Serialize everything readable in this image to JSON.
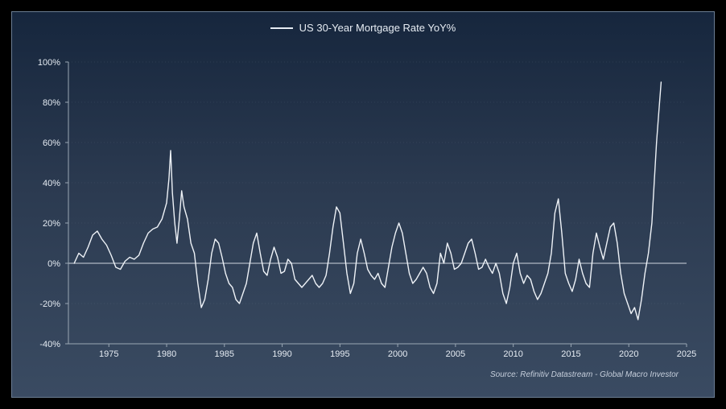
{
  "chart": {
    "type": "line",
    "legend_label": "US 30-Year Mortgage Rate YoY%",
    "source_label": "Source: Refinitiv Datastream - Global Macro Investor",
    "background_gradient": [
      "#16263d",
      "#2b3a50",
      "#3a4b62"
    ],
    "border_color": "#6b7d93",
    "text_color": "#e6ecf3",
    "axis_color": "#9aa7b4",
    "zero_line_color": "#cfd6df",
    "grid_color": "#6e7d8e",
    "series_color": "#eef2f7",
    "line_width": 1.4,
    "label_fontsize": 11,
    "legend_fontsize": 13,
    "xlim": [
      1971.5,
      2025
    ],
    "ylim": [
      -40,
      100
    ],
    "ytick_step": 20,
    "yticks": [
      -40,
      -20,
      0,
      20,
      40,
      60,
      80,
      100
    ],
    "ytick_labels": [
      "-40%",
      "-20%",
      "0%",
      "20%",
      "40%",
      "60%",
      "80%",
      "100%"
    ],
    "xticks": [
      1975,
      1980,
      1985,
      1990,
      1995,
      2000,
      2005,
      2010,
      2015,
      2020,
      2025
    ],
    "xtick_labels": [
      "1975",
      "1980",
      "1985",
      "1990",
      "1995",
      "2000",
      "2005",
      "2010",
      "2015",
      "2020",
      "2025"
    ],
    "series": [
      {
        "x": 1972.0,
        "y": 0
      },
      {
        "x": 1972.4,
        "y": 5
      },
      {
        "x": 1972.8,
        "y": 3
      },
      {
        "x": 1973.2,
        "y": 8
      },
      {
        "x": 1973.6,
        "y": 14
      },
      {
        "x": 1974.0,
        "y": 16
      },
      {
        "x": 1974.4,
        "y": 12
      },
      {
        "x": 1974.8,
        "y": 9
      },
      {
        "x": 1975.2,
        "y": 4
      },
      {
        "x": 1975.6,
        "y": -2
      },
      {
        "x": 1976.0,
        "y": -3
      },
      {
        "x": 1976.4,
        "y": 1
      },
      {
        "x": 1976.8,
        "y": 3
      },
      {
        "x": 1977.2,
        "y": 2
      },
      {
        "x": 1977.6,
        "y": 4
      },
      {
        "x": 1978.0,
        "y": 10
      },
      {
        "x": 1978.4,
        "y": 15
      },
      {
        "x": 1978.8,
        "y": 17
      },
      {
        "x": 1979.2,
        "y": 18
      },
      {
        "x": 1979.6,
        "y": 22
      },
      {
        "x": 1980.0,
        "y": 30
      },
      {
        "x": 1980.2,
        "y": 42
      },
      {
        "x": 1980.35,
        "y": 56
      },
      {
        "x": 1980.5,
        "y": 35
      },
      {
        "x": 1980.7,
        "y": 20
      },
      {
        "x": 1980.9,
        "y": 10
      },
      {
        "x": 1981.1,
        "y": 22
      },
      {
        "x": 1981.3,
        "y": 36
      },
      {
        "x": 1981.5,
        "y": 28
      },
      {
        "x": 1981.8,
        "y": 22
      },
      {
        "x": 1982.1,
        "y": 10
      },
      {
        "x": 1982.4,
        "y": 5
      },
      {
        "x": 1982.7,
        "y": -10
      },
      {
        "x": 1983.0,
        "y": -22
      },
      {
        "x": 1983.3,
        "y": -18
      },
      {
        "x": 1983.6,
        "y": -8
      },
      {
        "x": 1983.9,
        "y": 5
      },
      {
        "x": 1984.2,
        "y": 12
      },
      {
        "x": 1984.5,
        "y": 10
      },
      {
        "x": 1984.8,
        "y": 3
      },
      {
        "x": 1985.1,
        "y": -5
      },
      {
        "x": 1985.4,
        "y": -10
      },
      {
        "x": 1985.7,
        "y": -12
      },
      {
        "x": 1986.0,
        "y": -18
      },
      {
        "x": 1986.3,
        "y": -20
      },
      {
        "x": 1986.6,
        "y": -15
      },
      {
        "x": 1986.9,
        "y": -10
      },
      {
        "x": 1987.2,
        "y": 0
      },
      {
        "x": 1987.5,
        "y": 10
      },
      {
        "x": 1987.8,
        "y": 15
      },
      {
        "x": 1988.1,
        "y": 5
      },
      {
        "x": 1988.4,
        "y": -4
      },
      {
        "x": 1988.7,
        "y": -6
      },
      {
        "x": 1989.0,
        "y": 2
      },
      {
        "x": 1989.3,
        "y": 8
      },
      {
        "x": 1989.6,
        "y": 3
      },
      {
        "x": 1989.9,
        "y": -5
      },
      {
        "x": 1990.2,
        "y": -4
      },
      {
        "x": 1990.5,
        "y": 2
      },
      {
        "x": 1990.8,
        "y": 0
      },
      {
        "x": 1991.1,
        "y": -8
      },
      {
        "x": 1991.4,
        "y": -10
      },
      {
        "x": 1991.7,
        "y": -12
      },
      {
        "x": 1992.0,
        "y": -10
      },
      {
        "x": 1992.3,
        "y": -8
      },
      {
        "x": 1992.6,
        "y": -6
      },
      {
        "x": 1992.9,
        "y": -10
      },
      {
        "x": 1993.2,
        "y": -12
      },
      {
        "x": 1993.5,
        "y": -10
      },
      {
        "x": 1993.8,
        "y": -6
      },
      {
        "x": 1994.1,
        "y": 5
      },
      {
        "x": 1994.4,
        "y": 18
      },
      {
        "x": 1994.7,
        "y": 28
      },
      {
        "x": 1995.0,
        "y": 25
      },
      {
        "x": 1995.3,
        "y": 10
      },
      {
        "x": 1995.6,
        "y": -5
      },
      {
        "x": 1995.9,
        "y": -15
      },
      {
        "x": 1996.2,
        "y": -10
      },
      {
        "x": 1996.5,
        "y": 5
      },
      {
        "x": 1996.8,
        "y": 12
      },
      {
        "x": 1997.1,
        "y": 5
      },
      {
        "x": 1997.4,
        "y": -3
      },
      {
        "x": 1997.7,
        "y": -6
      },
      {
        "x": 1998.0,
        "y": -8
      },
      {
        "x": 1998.3,
        "y": -5
      },
      {
        "x": 1998.6,
        "y": -10
      },
      {
        "x": 1998.9,
        "y": -12
      },
      {
        "x": 1999.2,
        "y": -2
      },
      {
        "x": 1999.5,
        "y": 8
      },
      {
        "x": 1999.8,
        "y": 15
      },
      {
        "x": 2000.1,
        "y": 20
      },
      {
        "x": 2000.4,
        "y": 15
      },
      {
        "x": 2000.7,
        "y": 5
      },
      {
        "x": 2001.0,
        "y": -5
      },
      {
        "x": 2001.3,
        "y": -10
      },
      {
        "x": 2001.6,
        "y": -8
      },
      {
        "x": 2001.9,
        "y": -5
      },
      {
        "x": 2002.2,
        "y": -2
      },
      {
        "x": 2002.5,
        "y": -5
      },
      {
        "x": 2002.8,
        "y": -12
      },
      {
        "x": 2003.1,
        "y": -15
      },
      {
        "x": 2003.4,
        "y": -10
      },
      {
        "x": 2003.7,
        "y": 5
      },
      {
        "x": 2004.0,
        "y": 0
      },
      {
        "x": 2004.3,
        "y": 10
      },
      {
        "x": 2004.6,
        "y": 5
      },
      {
        "x": 2004.9,
        "y": -3
      },
      {
        "x": 2005.2,
        "y": -2
      },
      {
        "x": 2005.5,
        "y": 0
      },
      {
        "x": 2005.8,
        "y": 5
      },
      {
        "x": 2006.1,
        "y": 10
      },
      {
        "x": 2006.4,
        "y": 12
      },
      {
        "x": 2006.7,
        "y": 5
      },
      {
        "x": 2007.0,
        "y": -3
      },
      {
        "x": 2007.3,
        "y": -2
      },
      {
        "x": 2007.6,
        "y": 2
      },
      {
        "x": 2007.9,
        "y": -2
      },
      {
        "x": 2008.2,
        "y": -5
      },
      {
        "x": 2008.5,
        "y": 0
      },
      {
        "x": 2008.8,
        "y": -5
      },
      {
        "x": 2009.1,
        "y": -15
      },
      {
        "x": 2009.4,
        "y": -20
      },
      {
        "x": 2009.7,
        "y": -12
      },
      {
        "x": 2010.0,
        "y": 0
      },
      {
        "x": 2010.3,
        "y": 5
      },
      {
        "x": 2010.6,
        "y": -5
      },
      {
        "x": 2010.9,
        "y": -10
      },
      {
        "x": 2011.2,
        "y": -6
      },
      {
        "x": 2011.5,
        "y": -8
      },
      {
        "x": 2011.8,
        "y": -14
      },
      {
        "x": 2012.1,
        "y": -18
      },
      {
        "x": 2012.4,
        "y": -15
      },
      {
        "x": 2012.7,
        "y": -10
      },
      {
        "x": 2013.0,
        "y": -5
      },
      {
        "x": 2013.3,
        "y": 5
      },
      {
        "x": 2013.6,
        "y": 25
      },
      {
        "x": 2013.9,
        "y": 32
      },
      {
        "x": 2014.2,
        "y": 15
      },
      {
        "x": 2014.5,
        "y": -5
      },
      {
        "x": 2014.8,
        "y": -10
      },
      {
        "x": 2015.1,
        "y": -14
      },
      {
        "x": 2015.4,
        "y": -8
      },
      {
        "x": 2015.7,
        "y": 2
      },
      {
        "x": 2016.0,
        "y": -5
      },
      {
        "x": 2016.3,
        "y": -10
      },
      {
        "x": 2016.6,
        "y": -12
      },
      {
        "x": 2016.9,
        "y": 5
      },
      {
        "x": 2017.2,
        "y": 15
      },
      {
        "x": 2017.5,
        "y": 8
      },
      {
        "x": 2017.8,
        "y": 2
      },
      {
        "x": 2018.1,
        "y": 10
      },
      {
        "x": 2018.4,
        "y": 18
      },
      {
        "x": 2018.7,
        "y": 20
      },
      {
        "x": 2019.0,
        "y": 10
      },
      {
        "x": 2019.3,
        "y": -5
      },
      {
        "x": 2019.6,
        "y": -15
      },
      {
        "x": 2019.9,
        "y": -20
      },
      {
        "x": 2020.2,
        "y": -25
      },
      {
        "x": 2020.5,
        "y": -22
      },
      {
        "x": 2020.8,
        "y": -28
      },
      {
        "x": 2021.1,
        "y": -18
      },
      {
        "x": 2021.4,
        "y": -5
      },
      {
        "x": 2021.7,
        "y": 5
      },
      {
        "x": 2022.0,
        "y": 20
      },
      {
        "x": 2022.2,
        "y": 40
      },
      {
        "x": 2022.4,
        "y": 60
      },
      {
        "x": 2022.6,
        "y": 75
      },
      {
        "x": 2022.8,
        "y": 90
      }
    ]
  }
}
